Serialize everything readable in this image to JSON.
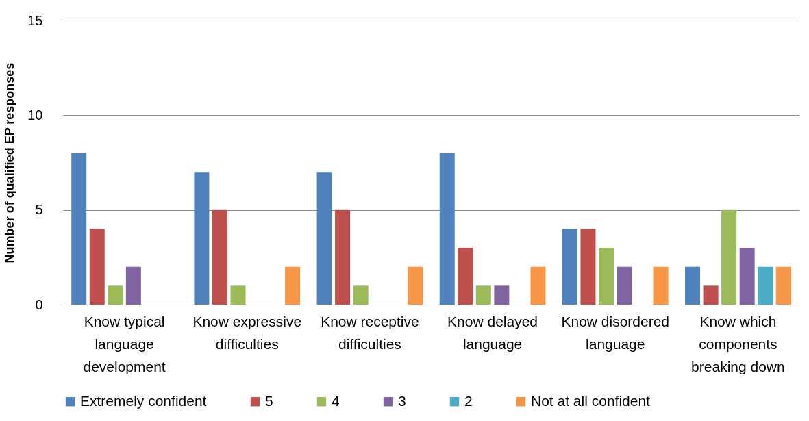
{
  "chart_data": {
    "type": "bar",
    "ylabel": "Number of qualified EP responses",
    "categories": [
      "Know typical language development",
      "Know expressive difficulties",
      "Know receptive difficulties",
      "Know delayed language",
      "Know disordered language",
      "Know which components breaking down"
    ],
    "series": [
      {
        "name": "Extremely confident",
        "color": "#4f81bd",
        "values": [
          8,
          7,
          7,
          8,
          4,
          2
        ]
      },
      {
        "name": "5",
        "color": "#c0504d",
        "values": [
          4,
          5,
          5,
          3,
          4,
          1
        ]
      },
      {
        "name": "4",
        "color": "#9bbb59",
        "values": [
          1,
          1,
          1,
          1,
          3,
          5
        ]
      },
      {
        "name": "3",
        "color": "#8064a2",
        "values": [
          2,
          0,
          0,
          1,
          2,
          3
        ]
      },
      {
        "name": "2",
        "color": "#4bacc6",
        "values": [
          0,
          0,
          0,
          0,
          0,
          2
        ]
      },
      {
        "name": "Not at all confident",
        "color": "#f79646",
        "values": [
          0,
          2,
          2,
          2,
          2,
          2
        ]
      }
    ],
    "ylim": [
      0,
      15
    ],
    "yticks": [
      0,
      5,
      10,
      15
    ],
    "grid": "y",
    "legend": "bottom"
  }
}
